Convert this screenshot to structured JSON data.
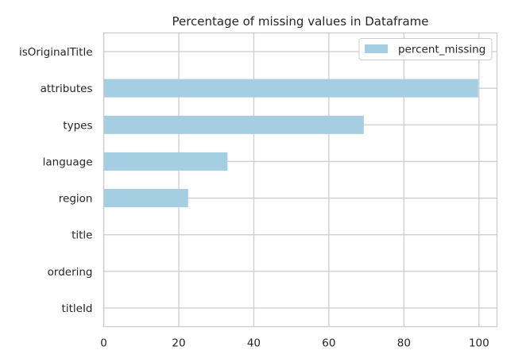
{
  "chart_data": {
    "type": "bar",
    "orientation": "horizontal",
    "title": "Percentage of missing values in Dataframe",
    "xlabel": "",
    "ylabel": "",
    "categories": [
      "titleId",
      "ordering",
      "title",
      "region",
      "language",
      "types",
      "attributes",
      "isOriginalTitle"
    ],
    "series": [
      {
        "name": "percent_missing",
        "values": [
          0,
          0,
          0,
          22.5,
          33,
          69.3,
          99.8,
          0
        ],
        "color": "#a6cee3"
      }
    ],
    "xlim": [
      0,
      104.8
    ],
    "xticks": [
      "0",
      "20",
      "40",
      "60",
      "80",
      "100"
    ],
    "grid": true,
    "legend": "top-right"
  },
  "colors": {
    "grid": "#cccccc",
    "axes": "#cccccc",
    "text": "#262626",
    "background": "#ffffff"
  }
}
